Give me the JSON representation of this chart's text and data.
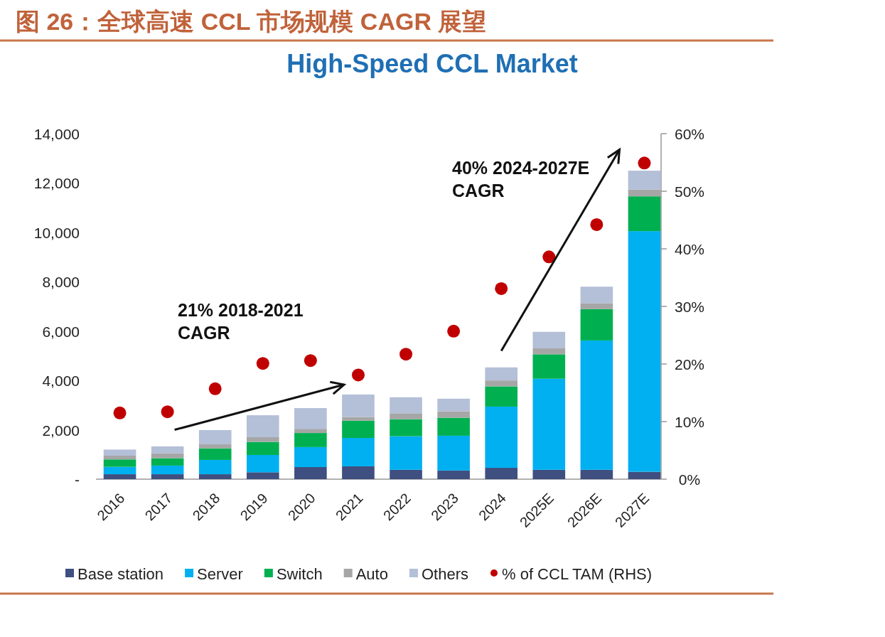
{
  "chart_data": {
    "type": "bar",
    "stacked": true,
    "title": "图 26：全球高速 CCL 市场规模 CAGR 展望",
    "subtitle": "High-Speed CCL Market",
    "categories": [
      "2016",
      "2017",
      "2018",
      "2019",
      "2020",
      "2021",
      "2022",
      "2023",
      "2024",
      "2025E",
      "2026E",
      "2027E"
    ],
    "series": [
      {
        "name": "Base station",
        "color": "#3f4f80",
        "values": [
          200,
          200,
          200,
          280,
          490,
          520,
          380,
          350,
          460,
          380,
          380,
          300
        ]
      },
      {
        "name": "Server",
        "color": "#00b0f0",
        "values": [
          300,
          350,
          580,
          700,
          810,
          1150,
          1360,
          1410,
          2480,
          3690,
          5240,
          9750
        ]
      },
      {
        "name": "Switch",
        "color": "#00b050",
        "values": [
          300,
          300,
          470,
          530,
          570,
          700,
          690,
          730,
          820,
          990,
          1270,
          1410
        ]
      },
      {
        "name": "Auto",
        "color": "#a6a6a6",
        "values": [
          150,
          200,
          160,
          190,
          170,
          150,
          240,
          260,
          240,
          240,
          240,
          270
        ]
      },
      {
        "name": "Others",
        "color": "#b4bfd8",
        "values": [
          250,
          280,
          580,
          890,
          840,
          910,
          650,
          510,
          530,
          670,
          670,
          770
        ]
      },
      {
        "name": "% of CCL TAM (RHS)",
        "type": "scatter",
        "axis": "y2",
        "marker": "circle",
        "color": "#c00000",
        "values": [
          11.5,
          11.7,
          15.7,
          20.1,
          20.6,
          18.1,
          21.7,
          25.7,
          33.1,
          38.6,
          44.2,
          54.9
        ]
      }
    ],
    "ylim": [
      0,
      14000
    ],
    "yticks": [
      {
        "value": 0,
        "label": "-"
      },
      {
        "value": 2000,
        "label": "2,000"
      },
      {
        "value": 4000,
        "label": "4,000"
      },
      {
        "value": 6000,
        "label": "6,000"
      },
      {
        "value": 8000,
        "label": "8,000"
      },
      {
        "value": 10000,
        "label": "10,000"
      },
      {
        "value": 12000,
        "label": "12,000"
      },
      {
        "value": 14000,
        "label": "14,000"
      }
    ],
    "y2lim": [
      0,
      60
    ],
    "y2ticks": [
      {
        "value": 0,
        "label": "0%"
      },
      {
        "value": 10,
        "label": "10%"
      },
      {
        "value": 20,
        "label": "20%"
      },
      {
        "value": 30,
        "label": "30%"
      },
      {
        "value": 40,
        "label": "40%"
      },
      {
        "value": 50,
        "label": "50%"
      },
      {
        "value": 60,
        "label": "60%"
      }
    ],
    "annotations": [
      "21% 2018-2021\nCAGR",
      "40% 2024-2027E\nCAGR"
    ],
    "legend": "bottom",
    "grid": false
  }
}
